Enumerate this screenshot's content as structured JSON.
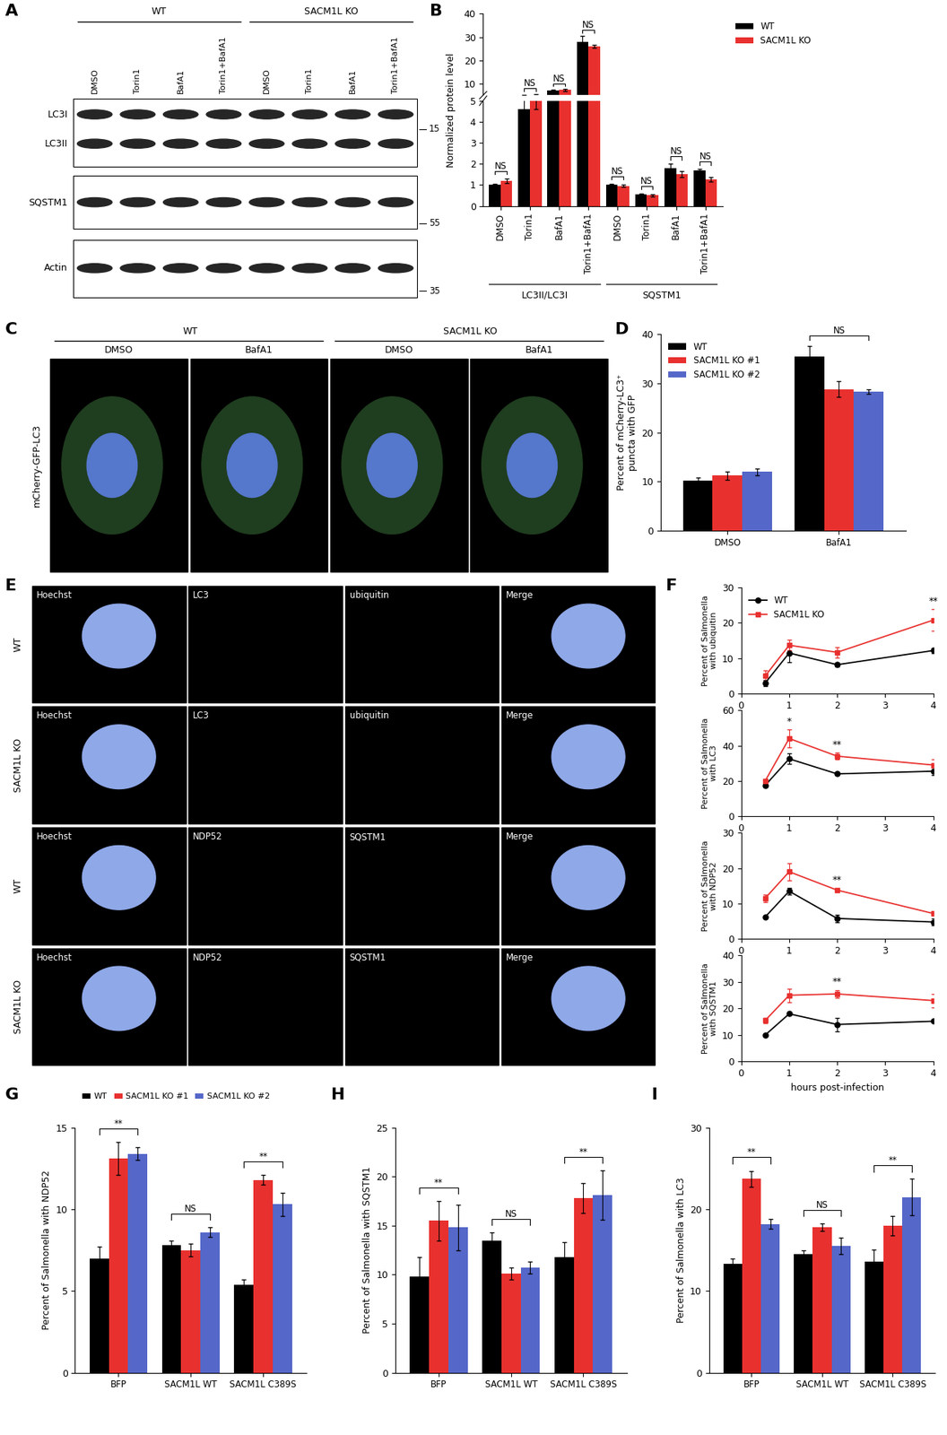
{
  "chart_data": [
    {
      "panel": "B",
      "type": "bar",
      "ylabel": "Normalized protein level",
      "groups": [
        {
          "label": "LC3II/LC3I",
          "categories": [
            "DMSO",
            "Torin1",
            "BafA1",
            "Torin1+BafA1"
          ]
        },
        {
          "label": "SQSTM1",
          "categories": [
            "DMSO",
            "Torin1",
            "BafA1",
            "Torin1+BafA1"
          ]
        }
      ],
      "series": [
        {
          "name": "WT",
          "color": "#000000",
          "values": [
            1.0,
            4.6,
            7.0,
            28.0,
            1.0,
            0.55,
            1.8,
            1.7
          ],
          "errors": [
            0.05,
            0.6,
            0.3,
            2.5,
            0.05,
            0.05,
            0.2,
            0.05
          ]
        },
        {
          "name": "SACM1L KO",
          "color": "#e8312f",
          "values": [
            1.2,
            5.0,
            7.2,
            26.0,
            0.95,
            0.5,
            1.5,
            1.25
          ],
          "errors": [
            0.1,
            0.4,
            0.4,
            0.7,
            0.05,
            0.05,
            0.15,
            0.1
          ]
        }
      ],
      "segments": [
        {
          "ylim": [
            0,
            5
          ],
          "yticks": [
            0,
            1,
            2,
            3,
            4,
            5
          ]
        },
        {
          "ylim": [
            5,
            40
          ],
          "yticks": [
            10,
            20,
            30,
            40
          ]
        }
      ],
      "significance": [
        "NS",
        "NS",
        "NS",
        "NS",
        "NS",
        "NS",
        "NS",
        "NS"
      ],
      "legend": "right"
    },
    {
      "panel": "D",
      "type": "bar",
      "ylabel": "Percent of mCherry-LC3⁺\npuncta with GFP",
      "categories": [
        "DMSO",
        "BafA1"
      ],
      "series": [
        {
          "name": "WT",
          "color": "#000000",
          "values": [
            10.2,
            35.5
          ],
          "errors": [
            0.6,
            2.0
          ]
        },
        {
          "name": "SACM1L KO #1",
          "color": "#e8312f",
          "values": [
            11.2,
            28.8
          ],
          "errors": [
            0.8,
            1.6
          ]
        },
        {
          "name": "SACM1L KO #2",
          "color": "#5567c8",
          "values": [
            12.0,
            28.3
          ],
          "errors": [
            0.7,
            0.5
          ]
        }
      ],
      "ylim": [
        0,
        40
      ],
      "yticks": [
        0,
        10,
        20,
        30,
        40
      ],
      "significance": [
        null,
        "NS"
      ],
      "legend": "upper left"
    },
    {
      "panel": "F",
      "type": "line",
      "ylabel": "Percent of Salmonella\nwith ubiquitin",
      "x": [
        0.5,
        1,
        2,
        4
      ],
      "xlim": [
        0,
        4
      ],
      "xticks": [
        0,
        1,
        2,
        3,
        4
      ],
      "ylim": [
        0,
        30
      ],
      "yticks": [
        0,
        10,
        20,
        30
      ],
      "series": [
        {
          "name": "WT",
          "color": "#000000",
          "marker": "circle",
          "values": [
            3.0,
            11.5,
            8.2,
            12.2
          ],
          "errors": [
            0.8,
            2.5,
            0.5,
            0.8
          ]
        },
        {
          "name": "SACM1L KO",
          "color": "#e8312f",
          "marker": "square",
          "values": [
            5.0,
            13.7,
            11.7,
            20.8
          ],
          "errors": [
            1.5,
            1.5,
            1.5,
            3.0
          ]
        }
      ],
      "significance": [
        null,
        null,
        null,
        "**"
      ],
      "legend": "upper left"
    },
    {
      "type": "line",
      "ylabel": "Percent of Salmonella\nwith LC3",
      "x": [
        0.5,
        1,
        2,
        4
      ],
      "xlim": [
        0,
        4
      ],
      "xticks": [
        0,
        1,
        2,
        3,
        4
      ],
      "ylim": [
        0,
        60
      ],
      "yticks": [
        0,
        20,
        40,
        60
      ],
      "series": [
        {
          "color": "#000000",
          "marker": "circle",
          "values": [
            17.5,
            32.5,
            24.0,
            25.5
          ],
          "errors": [
            1.0,
            3.0,
            0.5,
            2.0
          ]
        },
        {
          "color": "#e8312f",
          "marker": "square",
          "values": [
            20.0,
            44.0,
            34.0,
            29.0
          ],
          "errors": [
            1.0,
            5.0,
            2.0,
            3.0
          ]
        }
      ],
      "significance": [
        null,
        "*",
        "**",
        null
      ]
    },
    {
      "type": "line",
      "ylabel": "Percent of Salmonella\nwith NDP52",
      "x": [
        0.5,
        1,
        2,
        4
      ],
      "xlim": [
        0,
        4
      ],
      "xticks": [
        0,
        1,
        2,
        3,
        4
      ],
      "ylim": [
        0,
        30
      ],
      "yticks": [
        0,
        10,
        20,
        30
      ],
      "series": [
        {
          "color": "#000000",
          "marker": "circle",
          "values": [
            6.2,
            13.5,
            5.8,
            4.8
          ],
          "errors": [
            0.3,
            1.0,
            1.0,
            1.0
          ]
        },
        {
          "color": "#e8312f",
          "marker": "square",
          "values": [
            11.5,
            19.0,
            13.8,
            7.2
          ],
          "errors": [
            1.0,
            2.5,
            0.5,
            0.5
          ]
        }
      ],
      "significance": [
        null,
        null,
        "**",
        null
      ]
    },
    {
      "type": "line",
      "ylabel": "Percent of Salmonella\nwith SQSTM1",
      "xlabel": "hours post-infection",
      "x": [
        0.5,
        1,
        2,
        4
      ],
      "xlim": [
        0,
        4
      ],
      "xticks": [
        0,
        1,
        2,
        3,
        4
      ],
      "ylim": [
        0,
        40
      ],
      "yticks": [
        0,
        10,
        20,
        30,
        40
      ],
      "series": [
        {
          "color": "#000000",
          "marker": "circle",
          "values": [
            10.0,
            18.0,
            14.0,
            15.2
          ],
          "errors": [
            0.3,
            0.3,
            2.5,
            0.3
          ]
        },
        {
          "color": "#e8312f",
          "marker": "square",
          "values": [
            15.5,
            25.0,
            25.5,
            23.0
          ],
          "errors": [
            1.0,
            2.5,
            1.5,
            2.5
          ]
        }
      ],
      "significance": [
        null,
        null,
        "**",
        null
      ]
    },
    {
      "panel": "G",
      "type": "bar",
      "ylabel": "Percent of Salmonella with NDP52",
      "categories": [
        "BFP",
        "SACM1L WT",
        "SACM1L C389S"
      ],
      "series": [
        {
          "name": "WT",
          "color": "#000000",
          "values": [
            7.0,
            7.8,
            5.4
          ],
          "errors": [
            0.7,
            0.3,
            0.3
          ]
        },
        {
          "name": "SACM1L KO #1",
          "color": "#e8312f",
          "values": [
            13.1,
            7.5,
            11.8
          ],
          "errors": [
            1.0,
            0.4,
            0.3
          ]
        },
        {
          "name": "SACM1L KO #2",
          "color": "#5567c8",
          "values": [
            13.4,
            8.6,
            10.3
          ],
          "errors": [
            0.4,
            0.3,
            0.7
          ]
        }
      ],
      "ylim": [
        0,
        15
      ],
      "yticks": [
        0,
        5,
        10,
        15
      ],
      "significance": [
        "**",
        "NS",
        "**"
      ],
      "legend": "top"
    },
    {
      "panel": "H",
      "type": "bar",
      "ylabel": "Percent of Salmonella with SQSTM1",
      "categories": [
        "BFP",
        "SACM1L WT",
        "SACM1L C389S"
      ],
      "series": [
        {
          "color": "#000000",
          "values": [
            9.8,
            13.5,
            11.8
          ],
          "errors": [
            2.0,
            0.8,
            1.5
          ]
        },
        {
          "color": "#e8312f",
          "values": [
            15.5,
            10.1,
            17.8
          ],
          "errors": [
            2.0,
            0.6,
            1.5
          ]
        },
        {
          "color": "#5567c8",
          "values": [
            14.8,
            10.7,
            18.1
          ],
          "errors": [
            2.3,
            0.6,
            2.5
          ]
        }
      ],
      "ylim": [
        0,
        25
      ],
      "yticks": [
        0,
        5,
        10,
        15,
        20,
        25
      ],
      "significance": [
        "**",
        "NS",
        "**"
      ]
    },
    {
      "panel": "I",
      "type": "bar",
      "ylabel": "Percent of Salmonella with LC3",
      "categories": [
        "BFP",
        "SACM1L WT",
        "SACM1L C389S"
      ],
      "series": [
        {
          "color": "#000000",
          "values": [
            13.3,
            14.5,
            13.6
          ],
          "errors": [
            0.7,
            0.5,
            1.5
          ]
        },
        {
          "color": "#e8312f",
          "values": [
            23.7,
            17.8,
            18.0
          ],
          "errors": [
            1.0,
            0.5,
            1.2
          ]
        },
        {
          "color": "#5567c8",
          "values": [
            18.2,
            15.5,
            21.5
          ],
          "errors": [
            0.6,
            1.0,
            2.2
          ]
        }
      ],
      "ylim": [
        0,
        30
      ],
      "yticks": [
        0,
        10,
        20,
        30
      ],
      "significance": [
        "**",
        "NS",
        "**"
      ]
    }
  ],
  "images": [
    {
      "panel": "A",
      "type": "western blot",
      "groups": [
        "WT",
        "SACM1L KO"
      ],
      "lanes": [
        "DMSO",
        "Torin1",
        "BafA1",
        "Torin1+BafA1"
      ],
      "rows": [
        "LC3I",
        "LC3II",
        "SQSTM1",
        "Actin"
      ],
      "size_markers": [
        15,
        55,
        35
      ]
    },
    {
      "panel": "C",
      "type": "micrograph",
      "groups": [
        "WT",
        "SACM1L KO"
      ],
      "conditions": [
        "DMSO",
        "BafA1"
      ],
      "label": "mCherry-GFP-LC3"
    },
    {
      "panel": "E",
      "type": "micrograph grid",
      "rows": [
        {
          "label": "WT",
          "channels": [
            "Hoechst",
            "LC3",
            "ubiquitin",
            "Merge"
          ]
        },
        {
          "label": "SACM1L KO",
          "channels": [
            "Hoechst",
            "LC3",
            "ubiquitin",
            "Merge"
          ]
        },
        {
          "label": "WT",
          "channels": [
            "Hoechst",
            "NDP52",
            "SQSTM1",
            "Merge"
          ]
        },
        {
          "label": "SACM1L KO",
          "channels": [
            "Hoechst",
            "NDP52",
            "SQSTM1",
            "Merge"
          ]
        }
      ]
    }
  ]
}
